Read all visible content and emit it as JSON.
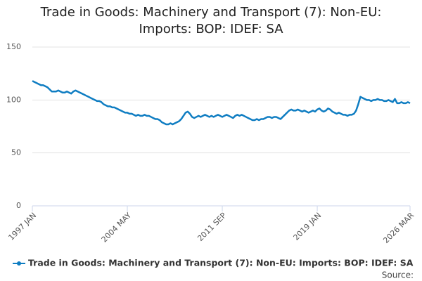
{
  "chart_data": {
    "type": "line",
    "title": "Trade in Goods: Machinery and Transport (7): Non-EU: Imports: BOP: IDEF: SA",
    "source": "Source:",
    "categories": [
      "1997 JAN",
      null,
      null,
      null,
      null,
      null,
      null,
      null,
      null,
      null,
      null,
      null,
      null,
      null,
      null,
      null,
      null,
      null,
      null,
      null,
      null,
      null,
      null,
      null,
      null,
      null,
      null,
      null,
      null,
      null,
      null,
      null,
      null,
      null,
      null,
      null,
      null,
      null,
      null,
      null,
      null,
      null,
      null,
      null,
      "2004 MAY",
      null,
      null,
      null,
      null,
      null,
      null,
      null,
      null,
      null,
      null,
      null,
      null,
      null,
      null,
      null,
      null,
      null,
      null,
      null,
      null,
      null,
      null,
      null,
      null,
      null,
      null,
      null,
      null,
      null,
      null,
      null,
      null,
      null,
      null,
      null,
      null,
      null,
      null,
      null,
      null,
      null,
      null,
      null,
      "2011 SEP",
      null,
      null,
      null,
      null,
      null,
      null,
      null,
      null,
      null,
      null,
      null,
      null,
      null,
      null,
      null,
      null,
      null,
      null,
      null,
      null,
      null,
      null,
      null,
      null,
      null,
      null,
      null,
      null,
      null,
      null,
      null,
      null,
      null,
      null,
      null,
      null,
      null,
      null,
      null,
      null,
      null,
      null,
      null,
      "2019 JAN",
      null,
      null,
      null,
      null,
      null,
      null,
      null,
      null,
      null,
      null,
      null,
      null,
      null,
      null,
      null,
      null,
      null,
      null,
      null,
      null,
      null,
      null,
      null,
      null,
      null,
      null,
      null,
      null,
      null,
      null,
      null,
      null,
      null,
      null,
      null,
      null,
      null,
      null,
      null,
      null,
      null,
      null,
      "2026 MAR"
    ],
    "series": [
      {
        "name": "Trade in Goods: Machinery and Transport (7): Non-EU: Imports: BOP: IDEF: SA",
        "color": "#0f7dc2",
        "values": [
          118,
          117,
          116,
          115,
          114,
          114,
          113,
          112,
          110,
          108,
          108,
          108,
          109,
          108,
          107,
          107,
          108,
          107,
          106,
          108,
          109,
          108,
          107,
          106,
          105,
          104,
          103,
          102,
          101,
          100,
          99,
          99,
          98,
          96,
          95,
          94,
          94,
          93,
          93,
          92,
          91,
          90,
          89,
          88,
          88,
          87,
          87,
          86,
          85,
          86,
          85,
          85,
          86,
          85,
          85,
          84,
          83,
          82,
          82,
          81,
          79,
          78,
          77,
          77,
          78,
          77,
          78,
          79,
          80,
          82,
          85,
          88,
          89,
          87,
          84,
          83,
          84,
          85,
          84,
          85,
          86,
          85,
          84,
          85,
          84,
          85,
          86,
          85,
          84,
          85,
          86,
          85,
          84,
          83,
          85,
          86,
          85,
          86,
          85,
          84,
          83,
          82,
          81,
          81,
          82,
          81,
          82,
          82,
          83,
          84,
          84,
          83,
          84,
          84,
          83,
          82,
          84,
          86,
          88,
          90,
          91,
          90,
          90,
          91,
          90,
          89,
          90,
          89,
          88,
          89,
          90,
          89,
          91,
          92,
          90,
          89,
          90,
          92,
          91,
          89,
          88,
          87,
          88,
          87,
          86,
          86,
          85,
          86,
          86,
          87,
          90,
          96,
          103,
          102,
          101,
          100,
          100,
          99,
          100,
          100,
          101,
          100,
          100,
          99,
          99,
          100,
          99,
          98,
          101,
          97,
          97,
          98,
          97,
          97,
          98,
          97
        ]
      }
    ],
    "ylim": [
      0,
      150
    ],
    "yticks": [
      0,
      50,
      100,
      150
    ],
    "grid": true,
    "legend": "bottom"
  }
}
